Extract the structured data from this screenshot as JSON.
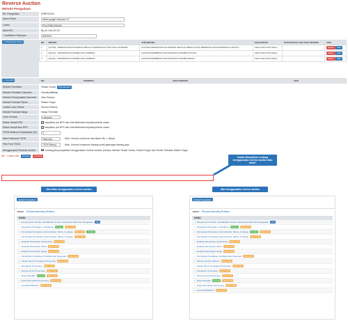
{
  "header": {
    "title": "Reverse Auction",
    "subtitle": "Metode Pengadaan"
  },
  "form": {
    "no_pengadaan": {
      "label": "No. Pengadaan",
      "value": "6YBP0/2024"
    },
    "nama_paket": {
      "label": "Nama Paket",
      "value": "Meski gargaji Uladosan 10\""
    },
    "lokasi": {
      "label": "Lokasi",
      "value": "PICA PABUSUNAN"
    },
    "nilai_hps": {
      "label": "Nilai HPS",
      "value": "Rp.40.145.210.00"
    },
    "klasifikasi": {
      "label": "* Kualifikasi Pekerjaan",
      "value": "BARANG"
    },
    "klasifikasi_button": "+ Kriteria/Fok Teknis",
    "kbli_headers": [
      "NO",
      "BIDANG",
      "SUB BIDANG",
      "KUALIFIKASI",
      "KUALIFIKASI LAIN YANG SEJENIS",
      "AKSI"
    ],
    "kbli_rows": [
      {
        "no": "1",
        "bidang": "[G4755] - PERDAGANGAN ECERAN MELALUI PEMESANAN POS ATAU INTERNET",
        "sub": "[G47919] PERDAGANGAN ECERAN MELALUI MEDIA UNTUK BERBAGAI MACAM BARANG LAINNYA",
        "kual": "KECIL DAN NON KECIL",
        "lain": ""
      },
      {
        "no": "2",
        "bidang": "[A0144] - PETERNAKAN DOMBA DAN KAMBING",
        "sub": "[A01443] PEMBIBITAN DAN BUDIDAYA DOMBA POTONG",
        "kual": "KECIL DAN NON KECIL",
        "lain": ""
      },
      {
        "no": "3",
        "bidang": "[A0144] - PETERNAKAN DOMBA DAN KAMBING",
        "sub": "[A01448] PEMBIBITAN DAN BUDIDAYA DOMBA PERAH",
        "kual": "KECIL DAN NON KECIL",
        "lain": ""
      }
    ],
    "hapus_label": "Hapus",
    "edit_label": "Edit",
    "komoditi_button": "+ Komoditi",
    "komoditi_headers": [
      "NO",
      "KOMODITI",
      "SUB KOMODITI",
      "AKSI"
    ],
    "rows": [
      {
        "label": "Metode Pemilihan",
        "value": "Tender Umum",
        "button": "Pilih Metode"
      },
      {
        "label": "Metode Penilaian Dokumen",
        "value": "Pascakualifikasi"
      },
      {
        "label": "Metode Penyampaian Dokumen",
        "value": "Satu Sampul"
      },
      {
        "label": "Metode Evaluasi Teknis",
        "value": "Sistem Gugur"
      },
      {
        "label": "Jumlah Lulus Teknis",
        "value": "Semua Peserta"
      },
      {
        "label": "Metode Evaluasi Harga",
        "value": "Harga Terendah"
      },
      {
        "label": "Jenis Kontrak",
        "value": "Lumpsum"
      },
      {
        "label": "Status Tampil HPS",
        "value": "tampilkan pra HPS dan nilai dikirimkan kepada peserta umum"
      },
      {
        "label": "Status Tampil Item HPS",
        "value": "tampilkan pra HPS dan nilai dikirimkan kepada peserta umum"
      },
      {
        "label": "TKDN Minimum Disyaratkan (%)",
        "value": "0"
      },
      {
        "label": "Nilai Preferensi TKDN",
        "value": "Tidak Ada",
        "extra": "Nilai : khusus untuk luar dari dalam Rp. 1 dibyar"
      },
      {
        "label": "Pilih Porsi TKDN",
        "value": "TKDN Barang",
        "extra": "Mab : khusus komponen barang untuk gabungan barang jasa"
      },
      {
        "label": "Menggunakan Reverse Auction",
        "value": "centang jika pengadaan menggunakan reverse auction (khusus metode Tender Umum, Sistem Gugur dan Tender Terbatas Sistem Gugur"
      }
    ],
    "required_note": "NB : *) Harus diisi",
    "simpan": "Simpan",
    "kembali": "Kembali"
  },
  "callouts": {
    "main": "Sudah ditampilkan centang menggunakan reverse auction atau tidak?",
    "left": "Jika tidak menggunakan reverse auction",
    "right": "Jika menggunakan reverse auction"
  },
  "panels": {
    "jadwal_button": "Jadwal Pengadaan",
    "tab_jadwal": "Jadwal",
    "tab_rencana": "Rencana Attending Realises",
    "nama_header": "NAMA",
    "left_items": [
      {
        "text": "Pengumuman Tender, Pendaftaran Tender & Download Dokumen Pengadaan",
        "badges": [
          [
            "Aktif",
            "#2a6ebb"
          ]
        ]
      },
      {
        "text": "Penjelasan Pekerjaan / Aanwijzing",
        "badges": [
          [
            "Perbaiki",
            "#5cb85c"
          ],
          [
            "Belum Aktif",
            "#f0ad4e"
          ]
        ]
      },
      {
        "text": "Pemasukan Penawaran (Administrasi, Teknis, & Harga)",
        "badges": [
          [
            "Belum Aktif",
            "#f0ad4e"
          ],
          [
            "Perbaiki",
            "#5cb85c"
          ]
        ]
      },
      {
        "text": "Pembukaan Penawaran (Administrasi, Teknis, & Harga)",
        "badges": [
          [
            "Belum Aktif",
            "#f0ad4e"
          ]
        ]
      },
      {
        "text": "Evaluasi Penawaran Administrasi",
        "badges": [
          [
            "Belum Aktif",
            "#f0ad4e"
          ]
        ]
      },
      {
        "text": "Evaluasi Penawaran Teknis",
        "badges": [
          [
            "Belum Aktif",
            "#f0ad4e"
          ]
        ]
      },
      {
        "text": "Evaluasi Penawaran Harga",
        "badges": [
          [
            "Belum Aktif",
            "#f0ad4e"
          ]
        ]
      },
      {
        "text": "Pembuktian Kualifikasi, Klarifikasi dan Negosiasi",
        "badges": [
          [
            "Belum Aktif",
            "#f0ad4e"
          ]
        ]
      },
      {
        "text": "Usulan Memo Penetapan Pemenang",
        "badges": [
          [
            "Belum Aktif",
            "#f0ad4e"
          ]
        ]
      },
      {
        "text": "Penetapan Pemenang",
        "badges": [
          [
            "Belum Aktif",
            "#f0ad4e"
          ]
        ]
      },
      {
        "text": "Pengumuman Pemenang",
        "badges": [
          [
            "Belum Aktif",
            "#f0ad4e"
          ]
        ]
      },
      {
        "text": "Masa Sanggah",
        "badges": [
          [
            "Perbaiki",
            "#5cb85c"
          ],
          [
            "Belum Aktif",
            "#f0ad4e"
          ]
        ]
      },
      {
        "text": "Surat Penunjukan Pemenang",
        "badges": [
          [
            "Belum Aktif",
            "#f0ad4e"
          ]
        ]
      },
      {
        "text": "Kontrak/SPMK/PO",
        "badges": [
          [
            "Belum Aktif",
            "#f0ad4e"
          ]
        ]
      }
    ],
    "right_items": [
      {
        "text": "Pengumuman Tender, Pendaftaran Tender & Download Dokumen Pengadaan",
        "badges": [
          [
            "Aktif",
            "#2a6ebb"
          ]
        ]
      },
      {
        "text": "Penjelasan Pekerjaan / Aanwijzing",
        "badges": [
          [
            "Perbaiki",
            "#5cb85c"
          ],
          [
            "Belum Aktif",
            "#f0ad4e"
          ]
        ]
      },
      {
        "text": "Pemasukan Penawaran (Administrasi, Teknis, & Harga)",
        "badges": [
          [
            "Perbaiki",
            "#5cb85c"
          ],
          [
            "Belum Aktif",
            "#f0ad4e"
          ]
        ]
      },
      {
        "text": "Pembukaan Penawaran (Administrasi, Teknis, & Harga)",
        "badges": [
          [
            "Belum Aktif",
            "#f0ad4e"
          ]
        ]
      },
      {
        "text": "Evaluasi Penawaran Administrasi",
        "badges": [
          [
            "Belum Aktif",
            "#f0ad4e"
          ]
        ]
      },
      {
        "text": "Evaluasi Penawaran Teknis",
        "badges": [
          [
            "Belum Aktif",
            "#f0ad4e"
          ]
        ]
      },
      {
        "text": "Evaluasi Penawaran Harga",
        "badges": [
          [
            "Belum Aktif",
            "#f0ad4e"
          ]
        ]
      },
      {
        "text": "Pembuktian Kualifikasi, Klarifikasi dan Negosiasi",
        "badges": [
          [
            "Belum Aktif",
            "#f0ad4e"
          ]
        ]
      },
      {
        "text": "Reverse Auction Tahap 1",
        "badges": [
          [
            "Belum Aktif",
            "#f0ad4e"
          ]
        ]
      },
      {
        "text": "Usulan Memo Penetapan Pemenang",
        "badges": [
          [
            "Belum Aktif",
            "#f0ad4e"
          ]
        ]
      },
      {
        "text": "Penetapan Pemenang",
        "badges": [
          [
            "Belum Aktif",
            "#f0ad4e"
          ]
        ]
      },
      {
        "text": "Pengumuman Pemenang",
        "badges": [
          [
            "Belum Aktif",
            "#f0ad4e"
          ]
        ]
      },
      {
        "text": "Masa Sanggah",
        "badges": [
          [
            "Perbaiki",
            "#5cb85c"
          ],
          [
            "Belum Aktif",
            "#f0ad4e"
          ]
        ]
      },
      {
        "text": "Surat Penunjukan Pemenang",
        "badges": [
          [
            "Belum Aktif",
            "#f0ad4e"
          ]
        ]
      },
      {
        "text": "Kontrak/SPMK/PO",
        "badges": [
          [
            "Belum Aktif",
            "#f0ad4e"
          ]
        ]
      }
    ]
  }
}
